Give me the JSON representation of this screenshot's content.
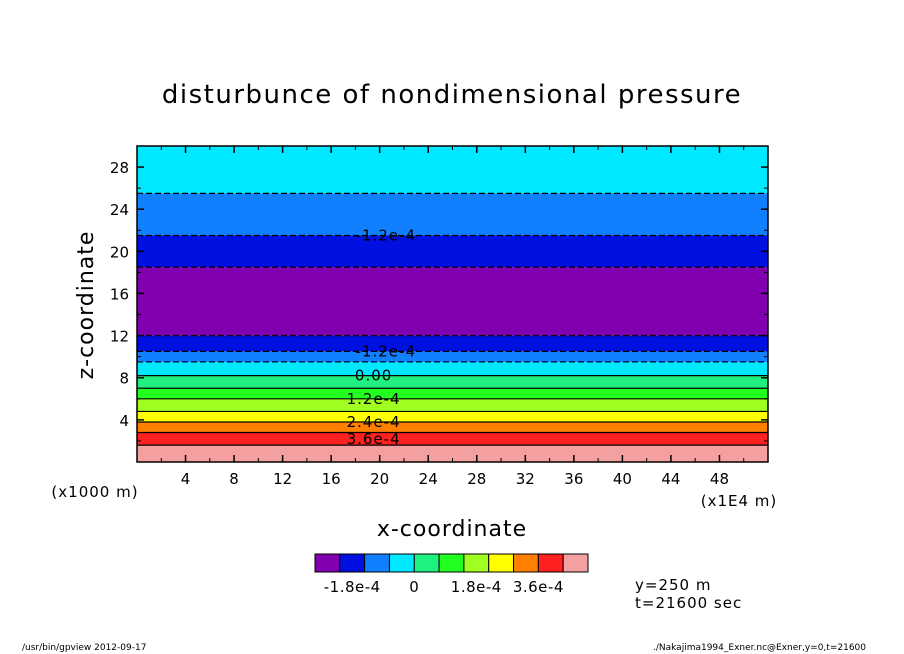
{
  "chart_data": {
    "type": "heatmap",
    "title": "disturbunce of nondimensional pressure",
    "xlabel": "x-coordinate",
    "ylabel": "z-coordinate",
    "x_unit": "(x1E4 m)",
    "y_unit": "(x1000 m)",
    "xlim": [
      0,
      52
    ],
    "ylim": [
      0,
      30
    ],
    "x_ticks": [
      "4",
      "8",
      "12",
      "16",
      "20",
      "24",
      "28",
      "32",
      "36",
      "40",
      "44",
      "48"
    ],
    "y_ticks": [
      "4",
      "8",
      "12",
      "16",
      "20",
      "24",
      "28"
    ],
    "bands": [
      {
        "z0": 0.0,
        "z1": 1.6,
        "color": "#f5a0a0"
      },
      {
        "z0": 1.6,
        "z1": 2.8,
        "color": "#ff2020"
      },
      {
        "z0": 2.8,
        "z1": 3.8,
        "color": "#ff7f00"
      },
      {
        "z0": 3.8,
        "z1": 4.8,
        "color": "#ffff00"
      },
      {
        "z0": 4.8,
        "z1": 6.0,
        "color": "#a0ff20"
      },
      {
        "z0": 6.0,
        "z1": 7.0,
        "color": "#20ff20"
      },
      {
        "z0": 7.0,
        "z1": 8.2,
        "color": "#20f080"
      },
      {
        "z0": 8.2,
        "z1": 9.5,
        "color": "#00e8ff"
      },
      {
        "z0": 9.5,
        "z1": 10.5,
        "color": "#1080ff"
      },
      {
        "z0": 10.5,
        "z1": 12.0,
        "color": "#0010e0"
      },
      {
        "z0": 12.0,
        "z1": 18.5,
        "color": "#8000b0"
      },
      {
        "z0": 18.5,
        "z1": 21.5,
        "color": "#0010e0"
      },
      {
        "z0": 21.5,
        "z1": 25.5,
        "color": "#1080ff"
      },
      {
        "z0": 25.5,
        "z1": 30.0,
        "color": "#00e8ff"
      }
    ],
    "contour_labels": [
      {
        "text": "-1.2e-4",
        "x": 20.5,
        "z": 21.5
      },
      {
        "text": "-1.2e-4",
        "x": 20.5,
        "z": 10.5
      },
      {
        "text": "0.00",
        "x": 19.5,
        "z": 8.2
      },
      {
        "text": "1.2e-4",
        "x": 19.5,
        "z": 6.0
      },
      {
        "text": "2.4e-4",
        "x": 19.5,
        "z": 3.8
      },
      {
        "text": "3.6e-4",
        "x": 19.5,
        "z": 2.2
      }
    ],
    "colorbar": {
      "colors": [
        "#8000b0",
        "#0010e0",
        "#1080ff",
        "#00e8ff",
        "#20f080",
        "#20ff20",
        "#a0ff20",
        "#ffff00",
        "#ff7f00",
        "#ff2020",
        "#f5a0a0"
      ],
      "tick_labels": [
        "-1.8e-4",
        "0",
        "1.8e-4",
        "3.6e-4"
      ],
      "tick_positions": [
        1.5,
        4,
        6.5,
        9
      ]
    }
  },
  "annotations": {
    "y_info": "y=250 m",
    "t_info": "t=21600 sec",
    "footer_left": "/usr/bin/gpview   2012-09-17",
    "footer_right": "./Nakajima1994_Exner.nc@Exner,y=0,t=21600"
  }
}
